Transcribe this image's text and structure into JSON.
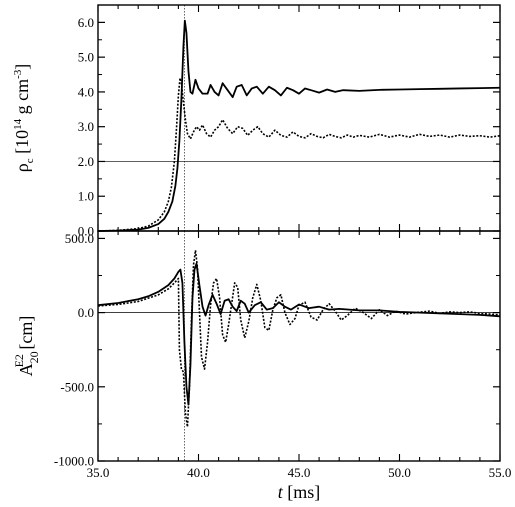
{
  "chart_data": [
    {
      "type": "line",
      "panel": "top",
      "ylabel": {
        "base": "ρ",
        "sub": "c",
        "open": " [10",
        "exp": "14",
        "mid": " g cm",
        "exp2": "-3",
        "close": "]"
      },
      "xlim": [
        35.0,
        55.0
      ],
      "ylim": [
        0.0,
        6.5
      ],
      "yticks": [
        0.0,
        1.0,
        2.0,
        3.0,
        4.0,
        5.0,
        6.0
      ],
      "ytick_labels": [
        "0.0",
        "1.0",
        "2.0",
        "3.0",
        "4.0",
        "5.0",
        "6.0"
      ],
      "hline": 2.0,
      "vline": 39.3,
      "grid": false,
      "legend": "none",
      "series": [
        {
          "style": "solid",
          "points": [
            [
              35.0,
              0.0
            ],
            [
              36.0,
              0.01
            ],
            [
              37.0,
              0.04
            ],
            [
              37.5,
              0.09
            ],
            [
              38.0,
              0.2
            ],
            [
              38.3,
              0.35
            ],
            [
              38.5,
              0.55
            ],
            [
              38.7,
              0.85
            ],
            [
              38.85,
              1.3
            ],
            [
              38.95,
              1.8
            ],
            [
              39.05,
              2.6
            ],
            [
              39.15,
              3.8
            ],
            [
              39.25,
              5.3
            ],
            [
              39.32,
              6.05
            ],
            [
              39.4,
              5.7
            ],
            [
              39.5,
              4.6
            ],
            [
              39.6,
              4.0
            ],
            [
              39.7,
              3.95
            ],
            [
              39.85,
              4.35
            ],
            [
              40.0,
              4.1
            ],
            [
              40.2,
              3.95
            ],
            [
              40.45,
              3.95
            ],
            [
              40.6,
              4.2
            ],
            [
              40.8,
              4.0
            ],
            [
              41.0,
              3.9
            ],
            [
              41.2,
              4.25
            ],
            [
              41.45,
              4.05
            ],
            [
              41.7,
              3.85
            ],
            [
              41.9,
              4.15
            ],
            [
              42.15,
              4.2
            ],
            [
              42.4,
              3.9
            ],
            [
              42.65,
              4.1
            ],
            [
              42.9,
              4.15
            ],
            [
              43.2,
              3.95
            ],
            [
              43.5,
              4.15
            ],
            [
              43.8,
              4.05
            ],
            [
              44.1,
              3.9
            ],
            [
              44.4,
              4.12
            ],
            [
              44.7,
              4.05
            ],
            [
              45.0,
              3.95
            ],
            [
              45.3,
              4.1
            ],
            [
              45.6,
              4.05
            ],
            [
              46.0,
              3.98
            ],
            [
              46.4,
              4.07
            ],
            [
              46.8,
              4.0
            ],
            [
              47.2,
              4.05
            ],
            [
              48.0,
              4.03
            ],
            [
              49.0,
              4.06
            ],
            [
              50.0,
              4.07
            ],
            [
              51.0,
              4.08
            ],
            [
              52.0,
              4.09
            ],
            [
              53.0,
              4.1
            ],
            [
              54.0,
              4.11
            ],
            [
              55.0,
              4.12
            ]
          ]
        },
        {
          "style": "dotted",
          "points": [
            [
              35.0,
              0.0
            ],
            [
              36.0,
              0.02
            ],
            [
              37.0,
              0.07
            ],
            [
              37.5,
              0.14
            ],
            [
              38.0,
              0.32
            ],
            [
              38.3,
              0.55
            ],
            [
              38.5,
              0.85
            ],
            [
              38.65,
              1.25
            ],
            [
              38.8,
              2.0
            ],
            [
              38.9,
              2.9
            ],
            [
              39.0,
              3.9
            ],
            [
              39.08,
              4.4
            ],
            [
              39.15,
              4.25
            ],
            [
              39.25,
              3.7
            ],
            [
              39.35,
              3.2
            ],
            [
              39.45,
              2.8
            ],
            [
              39.6,
              2.65
            ],
            [
              39.75,
              2.85
            ],
            [
              39.9,
              3.0
            ],
            [
              40.05,
              2.9
            ],
            [
              40.2,
              3.05
            ],
            [
              40.4,
              2.8
            ],
            [
              40.6,
              2.7
            ],
            [
              40.8,
              2.9
            ],
            [
              41.0,
              3.0
            ],
            [
              41.2,
              3.2
            ],
            [
              41.45,
              2.95
            ],
            [
              41.7,
              2.8
            ],
            [
              41.95,
              3.0
            ],
            [
              42.2,
              2.95
            ],
            [
              42.45,
              2.75
            ],
            [
              42.7,
              2.9
            ],
            [
              42.95,
              3.0
            ],
            [
              43.2,
              2.8
            ],
            [
              43.5,
              2.7
            ],
            [
              43.8,
              2.9
            ],
            [
              44.1,
              2.75
            ],
            [
              44.4,
              2.7
            ],
            [
              44.7,
              2.85
            ],
            [
              45.0,
              2.72
            ],
            [
              45.3,
              2.68
            ],
            [
              45.6,
              2.8
            ],
            [
              45.9,
              2.72
            ],
            [
              46.2,
              2.68
            ],
            [
              46.5,
              2.78
            ],
            [
              46.8,
              2.72
            ],
            [
              47.1,
              2.68
            ],
            [
              47.4,
              2.76
            ],
            [
              47.7,
              2.7
            ],
            [
              48.0,
              2.75
            ],
            [
              48.5,
              2.7
            ],
            [
              49.0,
              2.78
            ],
            [
              49.5,
              2.7
            ],
            [
              50.0,
              2.76
            ],
            [
              50.5,
              2.7
            ],
            [
              51.0,
              2.78
            ],
            [
              51.5,
              2.72
            ],
            [
              52.0,
              2.76
            ],
            [
              52.5,
              2.7
            ],
            [
              53.0,
              2.76
            ],
            [
              53.5,
              2.72
            ],
            [
              54.0,
              2.74
            ],
            [
              54.5,
              2.7
            ],
            [
              55.0,
              2.74
            ]
          ]
        }
      ]
    },
    {
      "type": "line",
      "panel": "bottom",
      "ylabel": {
        "base": "A",
        "sub": "20",
        "sup": "E2",
        "tail": " [cm]"
      },
      "xlabel": {
        "var": "t",
        "unit": " [ms]"
      },
      "xlim": [
        35.0,
        55.0
      ],
      "ylim": [
        -1000.0,
        550.0
      ],
      "xticks": [
        35.0,
        40.0,
        45.0,
        50.0,
        55.0
      ],
      "xtick_labels": [
        "35.0",
        "40.0",
        "45.0",
        "50.0",
        "55.0"
      ],
      "yticks": [
        -1000.0,
        -500.0,
        0.0,
        500.0
      ],
      "ytick_labels": [
        "-1000.0",
        "-500.0",
        "0.0",
        "500.0"
      ],
      "hline": 0.0,
      "vline": 39.3,
      "grid": false,
      "legend": "none",
      "series": [
        {
          "style": "solid",
          "points": [
            [
              35.0,
              50
            ],
            [
              36.0,
              65
            ],
            [
              37.0,
              90
            ],
            [
              37.5,
              110
            ],
            [
              38.0,
              140
            ],
            [
              38.5,
              185
            ],
            [
              38.8,
              230
            ],
            [
              39.0,
              275
            ],
            [
              39.1,
              290
            ],
            [
              39.2,
              200
            ],
            [
              39.3,
              -200
            ],
            [
              39.4,
              -500
            ],
            [
              39.5,
              -620
            ],
            [
              39.6,
              -350
            ],
            [
              39.7,
              100
            ],
            [
              39.8,
              290
            ],
            [
              39.9,
              330
            ],
            [
              40.05,
              180
            ],
            [
              40.2,
              40
            ],
            [
              40.35,
              -20
            ],
            [
              40.5,
              50
            ],
            [
              40.7,
              120
            ],
            [
              40.9,
              60
            ],
            [
              41.1,
              -10
            ],
            [
              41.3,
              80
            ],
            [
              41.5,
              90
            ],
            [
              41.7,
              40
            ],
            [
              41.9,
              10
            ],
            [
              42.1,
              80
            ],
            [
              42.3,
              60
            ],
            [
              42.5,
              0
            ],
            [
              42.8,
              50
            ],
            [
              43.1,
              70
            ],
            [
              43.4,
              20
            ],
            [
              43.7,
              30
            ],
            [
              44.0,
              70
            ],
            [
              44.3,
              40
            ],
            [
              44.6,
              20
            ],
            [
              45.0,
              55
            ],
            [
              45.5,
              30
            ],
            [
              46.0,
              40
            ],
            [
              46.5,
              20
            ],
            [
              47.0,
              25
            ],
            [
              48.0,
              15
            ],
            [
              49.0,
              15
            ],
            [
              50.0,
              5
            ],
            [
              51.0,
              0
            ],
            [
              52.0,
              -5
            ],
            [
              53.0,
              -10
            ],
            [
              54.0,
              -15
            ],
            [
              55.0,
              -25
            ]
          ]
        },
        {
          "style": "dotted",
          "points": [
            [
              35.0,
              45
            ],
            [
              36.0,
              55
            ],
            [
              37.0,
              75
            ],
            [
              38.0,
              120
            ],
            [
              38.5,
              160
            ],
            [
              38.8,
              200
            ],
            [
              39.0,
              230
            ],
            [
              39.05,
              -250
            ],
            [
              39.15,
              -380
            ],
            [
              39.25,
              -400
            ],
            [
              39.35,
              -680
            ],
            [
              39.45,
              -770
            ],
            [
              39.55,
              -500
            ],
            [
              39.65,
              -50
            ],
            [
              39.75,
              320
            ],
            [
              39.85,
              420
            ],
            [
              39.95,
              300
            ],
            [
              40.05,
              0
            ],
            [
              40.15,
              -300
            ],
            [
              40.3,
              -380
            ],
            [
              40.45,
              -200
            ],
            [
              40.6,
              50
            ],
            [
              40.75,
              200
            ],
            [
              40.9,
              230
            ],
            [
              41.05,
              100
            ],
            [
              41.2,
              -150
            ],
            [
              41.35,
              -200
            ],
            [
              41.5,
              -80
            ],
            [
              41.65,
              60
            ],
            [
              41.8,
              200
            ],
            [
              41.95,
              170
            ],
            [
              42.1,
              -50
            ],
            [
              42.3,
              -170
            ],
            [
              42.5,
              -60
            ],
            [
              42.7,
              100
            ],
            [
              42.9,
              190
            ],
            [
              43.1,
              80
            ],
            [
              43.3,
              -100
            ],
            [
              43.5,
              -120
            ],
            [
              43.7,
              20
            ],
            [
              43.9,
              100
            ],
            [
              44.1,
              120
            ],
            [
              44.3,
              0
            ],
            [
              44.55,
              -80
            ],
            [
              44.8,
              -40
            ],
            [
              45.0,
              50
            ],
            [
              45.3,
              70
            ],
            [
              45.6,
              -30
            ],
            [
              45.9,
              -50
            ],
            [
              46.2,
              20
            ],
            [
              46.5,
              60
            ],
            [
              46.8,
              10
            ],
            [
              47.1,
              -50
            ],
            [
              47.4,
              -20
            ],
            [
              47.8,
              30
            ],
            [
              48.2,
              0
            ],
            [
              48.6,
              -40
            ],
            [
              49.0,
              20
            ],
            [
              49.4,
              -20
            ],
            [
              49.8,
              10
            ],
            [
              50.3,
              -10
            ],
            [
              50.8,
              0
            ],
            [
              51.5,
              10
            ],
            [
              52.0,
              -5
            ],
            [
              52.5,
              5
            ],
            [
              53.0,
              0
            ],
            [
              53.5,
              5
            ],
            [
              54.0,
              -5
            ],
            [
              54.5,
              -10
            ],
            [
              55.0,
              -15
            ]
          ]
        }
      ]
    }
  ]
}
